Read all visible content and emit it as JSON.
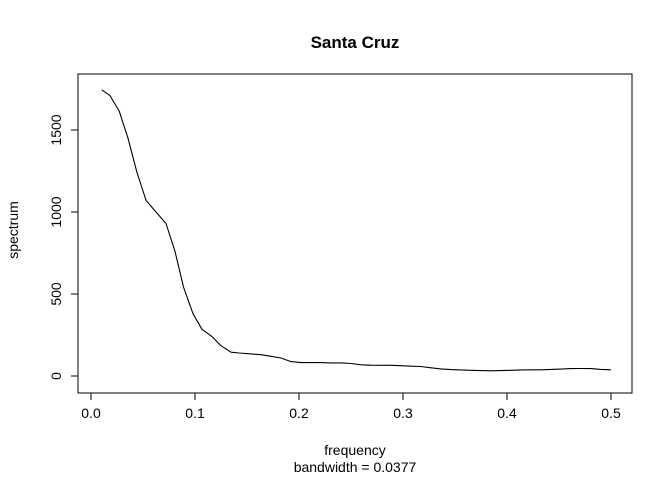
{
  "chart_data": {
    "type": "line",
    "title": "Santa Cruz",
    "xlabel": "frequency",
    "subtitle": "bandwidth = 0.0377",
    "ylabel": "spectrum",
    "xlim": [
      0,
      0.5
    ],
    "ylim": [
      0,
      1750
    ],
    "xticks": [
      0.0,
      0.1,
      0.2,
      0.3,
      0.4,
      0.5
    ],
    "xtick_labels": [
      "0.0",
      "0.1",
      "0.2",
      "0.3",
      "0.4",
      "0.5"
    ],
    "yticks": [
      0,
      500,
      1000,
      1500
    ],
    "ytick_labels": [
      "0",
      "500",
      "1000",
      "1500"
    ],
    "grid": false,
    "series": [
      {
        "color": "#000000",
        "x": [
          0.0104,
          0.0183,
          0.0271,
          0.0356,
          0.0442,
          0.053,
          0.0625,
          0.0721,
          0.0808,
          0.089,
          0.0981,
          0.1067,
          0.1163,
          0.125,
          0.1346,
          0.1423,
          0.1538,
          0.1635,
          0.1731,
          0.1827,
          0.1923,
          0.2019,
          0.2115,
          0.2212,
          0.2308,
          0.2404,
          0.25,
          0.2596,
          0.2692,
          0.2788,
          0.2885,
          0.2981,
          0.3077,
          0.3173,
          0.3269,
          0.3365,
          0.3462,
          0.3558,
          0.3654,
          0.375,
          0.3846,
          0.3942,
          0.4038,
          0.4135,
          0.4231,
          0.4327,
          0.4423,
          0.4519,
          0.4615,
          0.4712,
          0.4808,
          0.4904,
          0.5
        ],
        "y": [
          1745,
          1710,
          1615,
          1450,
          1240,
          1070,
          1000,
          930,
          760,
          540,
          380,
          285,
          240,
          185,
          145,
          140,
          135,
          130,
          120,
          110,
          88,
          82,
          82,
          82,
          80,
          80,
          76,
          68,
          66,
          65,
          65,
          63,
          60,
          58,
          50,
          43,
          39,
          37,
          35,
          33,
          32,
          33,
          35,
          37,
          38,
          38,
          40,
          42,
          45,
          46,
          45,
          40,
          38
        ]
      }
    ]
  }
}
